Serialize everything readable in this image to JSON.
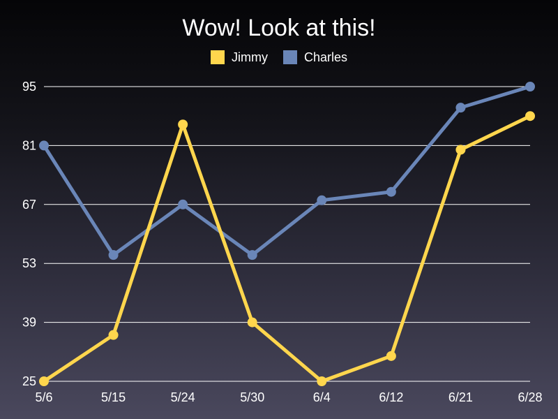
{
  "chart_data": {
    "type": "line",
    "title": "Wow!  Look at this!",
    "xlabel": "",
    "ylabel": "",
    "categories": [
      "5/6",
      "5/15",
      "5/24",
      "5/30",
      "6/4",
      "6/12",
      "6/21",
      "6/28"
    ],
    "yticks": [
      "25",
      "39",
      "53",
      "67",
      "81",
      "95"
    ],
    "ylim": [
      25,
      95
    ],
    "grid": true,
    "legend_position": "top-center",
    "series": [
      {
        "name": "Jimmy",
        "color": "#ffd64d",
        "values": [
          25,
          36,
          86,
          39,
          25,
          31,
          80,
          88
        ]
      },
      {
        "name": "Charles",
        "color": "#6a86b8",
        "values": [
          81,
          55,
          67,
          55,
          68,
          70,
          90,
          95
        ]
      }
    ]
  }
}
